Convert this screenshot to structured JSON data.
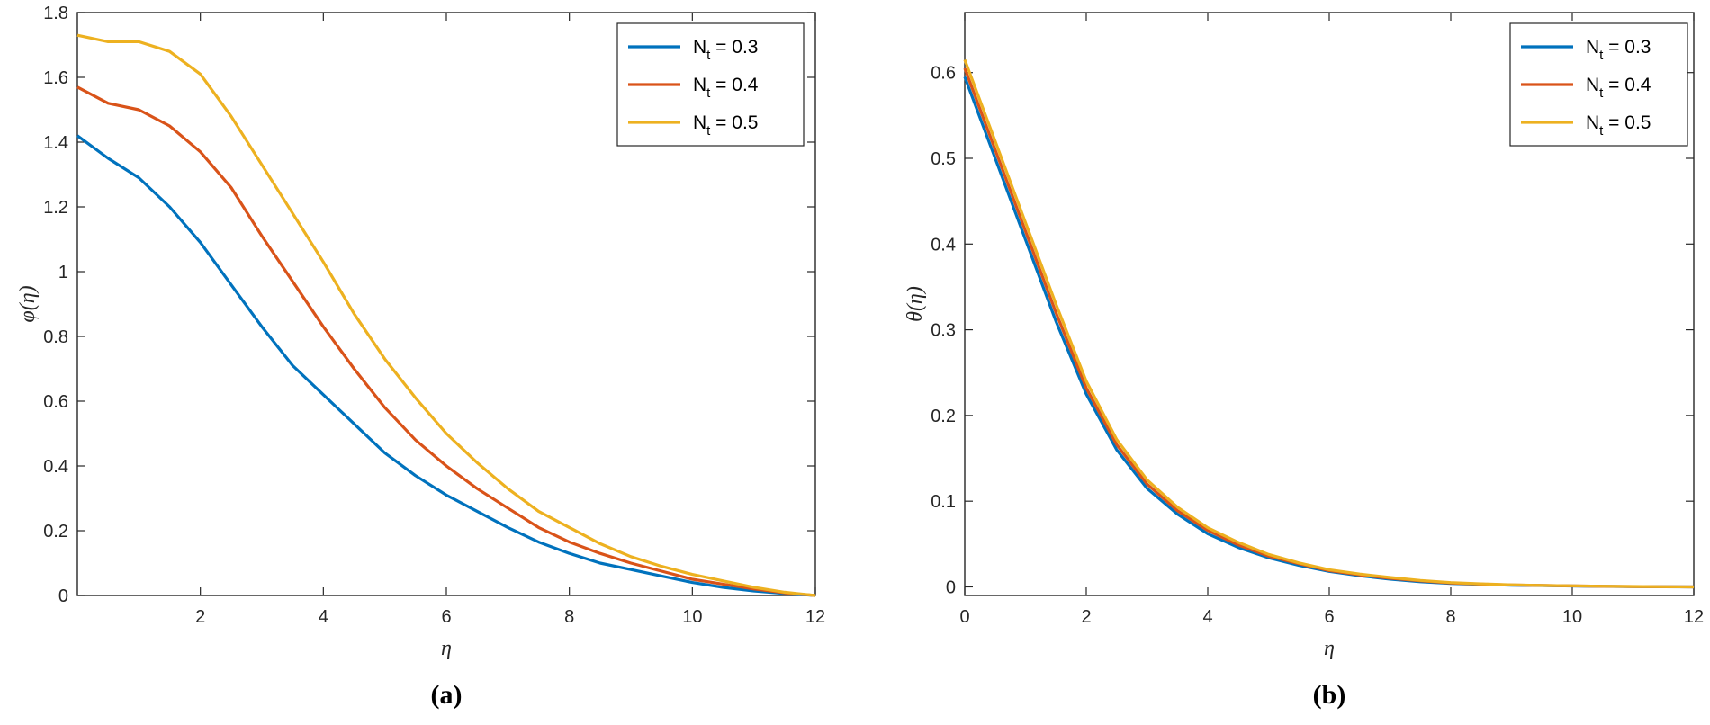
{
  "chart_data": [
    {
      "type": "line",
      "caption": "(a)",
      "xlabel": "η",
      "ylabel": "φ(η)",
      "xlim": [
        0,
        12
      ],
      "ylim": [
        0,
        1.8
      ],
      "xticks": [
        2,
        4,
        6,
        8,
        10,
        12
      ],
      "xtick_labels": [
        "2",
        "4",
        "6",
        "8",
        "10",
        "12"
      ],
      "yticks": [
        0,
        0.2,
        0.4,
        0.6,
        0.8,
        1,
        1.2,
        1.4,
        1.6,
        1.8
      ],
      "ytick_labels": [
        "0",
        "0.2",
        "0.4",
        "0.6",
        "0.8",
        "1",
        "1.2",
        "1.4",
        "1.6",
        "1.8"
      ],
      "grid": false,
      "legend_position": "top-right",
      "x": [
        0,
        0.5,
        1,
        1.5,
        2,
        2.5,
        3,
        3.5,
        4,
        4.5,
        5,
        5.5,
        6,
        6.5,
        7,
        7.5,
        8,
        8.5,
        9,
        9.5,
        10,
        10.5,
        11,
        11.5,
        12
      ],
      "series": [
        {
          "name": "N",
          "subscript": "t",
          "value_label": " = 0.3",
          "color": "#0072BD",
          "values": [
            1.42,
            1.35,
            1.29,
            1.2,
            1.09,
            0.96,
            0.83,
            0.71,
            0.62,
            0.53,
            0.44,
            0.37,
            0.31,
            0.26,
            0.21,
            0.165,
            0.13,
            0.1,
            0.08,
            0.06,
            0.04,
            0.025,
            0.014,
            0.006,
            0.0
          ]
        },
        {
          "name": "N",
          "subscript": "t",
          "value_label": " = 0.4",
          "color": "#D95319",
          "values": [
            1.57,
            1.52,
            1.5,
            1.45,
            1.37,
            1.26,
            1.11,
            0.97,
            0.83,
            0.7,
            0.58,
            0.48,
            0.4,
            0.33,
            0.27,
            0.21,
            0.165,
            0.13,
            0.1,
            0.075,
            0.05,
            0.035,
            0.02,
            0.008,
            0.0
          ]
        },
        {
          "name": "N",
          "subscript": "t",
          "value_label": " = 0.5",
          "color": "#EDB120",
          "values": [
            1.73,
            1.71,
            1.71,
            1.68,
            1.61,
            1.48,
            1.33,
            1.18,
            1.03,
            0.87,
            0.73,
            0.61,
            0.5,
            0.41,
            0.33,
            0.26,
            0.21,
            0.16,
            0.12,
            0.09,
            0.065,
            0.045,
            0.025,
            0.01,
            0.0
          ]
        }
      ]
    },
    {
      "type": "line",
      "caption": "(b)",
      "xlabel": "η",
      "ylabel": "θ(η)",
      "xlim": [
        0,
        12
      ],
      "ylim": [
        -0.01,
        0.67
      ],
      "xticks": [
        0,
        2,
        4,
        6,
        8,
        10,
        12
      ],
      "xtick_labels": [
        "0",
        "2",
        "4",
        "6",
        "8",
        "10",
        "12"
      ],
      "yticks": [
        0,
        0.1,
        0.2,
        0.3,
        0.4,
        0.5,
        0.6
      ],
      "ytick_labels": [
        "0",
        "0.1",
        "0.2",
        "0.3",
        "0.4",
        "0.5",
        "0.6"
      ],
      "grid": false,
      "legend_position": "top-right",
      "x": [
        0,
        0.5,
        1,
        1.5,
        2,
        2.5,
        3,
        3.5,
        4,
        4.5,
        5,
        5.5,
        6,
        6.5,
        7,
        7.5,
        8,
        8.5,
        9,
        9.5,
        10,
        10.5,
        11,
        11.5,
        12
      ],
      "series": [
        {
          "name": "N",
          "subscript": "t",
          "value_label": " = 0.3",
          "color": "#0072BD",
          "values": [
            0.595,
            0.5,
            0.405,
            0.31,
            0.225,
            0.16,
            0.115,
            0.085,
            0.062,
            0.046,
            0.034,
            0.025,
            0.018,
            0.013,
            0.009,
            0.006,
            0.004,
            0.003,
            0.002,
            0.0015,
            0.001,
            0.0006,
            0.0003,
            0.0001,
            0.0
          ]
        },
        {
          "name": "N",
          "subscript": "t",
          "value_label": " = 0.4",
          "color": "#D95319",
          "values": [
            0.605,
            0.51,
            0.415,
            0.32,
            0.232,
            0.166,
            0.12,
            0.089,
            0.066,
            0.049,
            0.036,
            0.027,
            0.019,
            0.014,
            0.01,
            0.007,
            0.0045,
            0.0032,
            0.0022,
            0.0016,
            0.0011,
            0.0007,
            0.0004,
            0.0002,
            0.0
          ]
        },
        {
          "name": "N",
          "subscript": "t",
          "value_label": " = 0.5",
          "color": "#EDB120",
          "values": [
            0.615,
            0.52,
            0.425,
            0.33,
            0.24,
            0.172,
            0.125,
            0.093,
            0.069,
            0.052,
            0.038,
            0.028,
            0.02,
            0.015,
            0.011,
            0.0075,
            0.005,
            0.0035,
            0.0024,
            0.0017,
            0.0012,
            0.0008,
            0.0005,
            0.0002,
            0.0
          ]
        }
      ]
    }
  ]
}
